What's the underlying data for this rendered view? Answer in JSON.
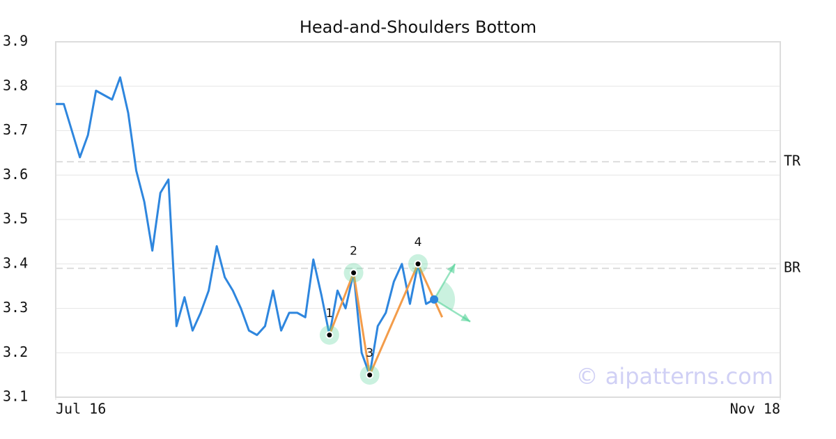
{
  "chart_data": {
    "type": "line",
    "title": "Head-and-Shoulders Bottom",
    "xlim": [
      0,
      90
    ],
    "xticks": [
      {
        "value": 0,
        "label": "Jul 16"
      },
      {
        "value": 90,
        "label": "Nov 18"
      }
    ],
    "ylim": [
      3.1,
      3.9
    ],
    "yticks": [
      3.1,
      3.2,
      3.3,
      3.4,
      3.5,
      3.6,
      3.7,
      3.8,
      3.9
    ],
    "grid": true,
    "series": [
      {
        "color": "#2e86de",
        "x": [
          0,
          1,
          2,
          3,
          4,
          5,
          6,
          7,
          8,
          9,
          10,
          11,
          12,
          13,
          14,
          15,
          16,
          17,
          18,
          19,
          20,
          21,
          22,
          23,
          24,
          25,
          26,
          27,
          28,
          29,
          30,
          31,
          32,
          33,
          34,
          35,
          36,
          37,
          38,
          39,
          40,
          41,
          42,
          43,
          44,
          45,
          46,
          47
        ],
        "values": [
          3.76,
          3.76,
          3.7,
          3.64,
          3.69,
          3.79,
          3.78,
          3.77,
          3.82,
          3.74,
          3.61,
          3.54,
          3.43,
          3.56,
          3.59,
          3.26,
          3.325,
          3.25,
          3.29,
          3.34,
          3.44,
          3.37,
          3.34,
          3.3,
          3.25,
          3.24,
          3.26,
          3.34,
          3.25,
          3.29,
          3.29,
          3.28,
          3.41,
          3.33,
          3.24,
          3.34,
          3.3,
          3.38,
          3.2,
          3.15,
          3.26,
          3.29,
          3.36,
          3.4,
          3.31,
          3.4,
          3.31,
          3.32
        ]
      }
    ],
    "pattern": {
      "color": "#f39c4a",
      "x": [
        34,
        37,
        39,
        45,
        48
      ],
      "values": [
        3.24,
        3.38,
        3.15,
        3.4,
        3.28
      ],
      "labels": [
        "1",
        "2",
        "3",
        "4"
      ]
    },
    "current": {
      "x": 47,
      "y": 3.32,
      "color": "#2e86de"
    },
    "targets": [
      {
        "x": 49.6,
        "y": 3.4
      },
      {
        "x": 51.5,
        "y": 3.27
      }
    ],
    "levels": [
      {
        "name": "TR",
        "value": 3.63
      },
      {
        "name": "BR",
        "value": 3.39
      }
    ],
    "watermark": "© aipatterns.com"
  }
}
